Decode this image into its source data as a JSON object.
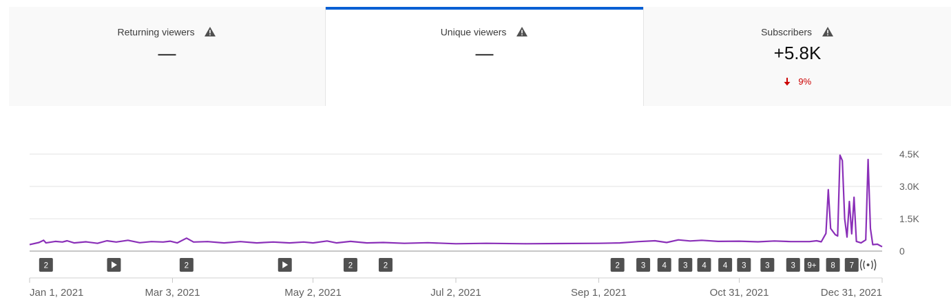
{
  "tabs": [
    {
      "label": "Returning viewers",
      "value": "—",
      "selected": false,
      "icon": "warning-icon"
    },
    {
      "label": "Unique viewers",
      "value": "—",
      "selected": true,
      "icon": "warning-icon"
    },
    {
      "label": "Subscribers",
      "value": "+5.8K",
      "selected": false,
      "icon": "warning-icon",
      "delta": "9%",
      "delta_direction": "down"
    }
  ],
  "colors": {
    "accent": "#065fd4",
    "line": "#8a2fb8",
    "negative": "#cc0000"
  },
  "chart_data": {
    "type": "line",
    "x_start": "Jan 1, 2021",
    "x_end": "Dec 31, 2021",
    "x_tick_labels": [
      "Jan 1, 2021",
      "Mar 3, 2021",
      "May 2, 2021",
      "Jul 2, 2021",
      "Sep 1, 2021",
      "Oct 31, 2021",
      "Dec 31, 2021"
    ],
    "y_ticks": [
      0,
      1500,
      3000,
      4500
    ],
    "y_tick_labels": [
      "0",
      "1.5K",
      "3.0K",
      "4.5K"
    ],
    "ylim": [
      0,
      4500
    ],
    "grid": true,
    "series": [
      {
        "points": [
          [
            "2021-01-01",
            300
          ],
          [
            "2021-01-05",
            400
          ],
          [
            "2021-01-07",
            500
          ],
          [
            "2021-01-08",
            380
          ],
          [
            "2021-01-12",
            450
          ],
          [
            "2021-01-15",
            420
          ],
          [
            "2021-01-17",
            480
          ],
          [
            "2021-01-20",
            380
          ],
          [
            "2021-01-25",
            430
          ],
          [
            "2021-01-30",
            360
          ],
          [
            "2021-02-03",
            480
          ],
          [
            "2021-02-07",
            420
          ],
          [
            "2021-02-12",
            500
          ],
          [
            "2021-02-17",
            390
          ],
          [
            "2021-02-22",
            440
          ],
          [
            "2021-02-27",
            420
          ],
          [
            "2021-03-02",
            460
          ],
          [
            "2021-03-05",
            380
          ],
          [
            "2021-03-09",
            600
          ],
          [
            "2021-03-12",
            420
          ],
          [
            "2021-03-18",
            440
          ],
          [
            "2021-03-25",
            380
          ],
          [
            "2021-04-01",
            440
          ],
          [
            "2021-04-08",
            380
          ],
          [
            "2021-04-15",
            420
          ],
          [
            "2021-04-22",
            380
          ],
          [
            "2021-04-28",
            420
          ],
          [
            "2021-05-02",
            380
          ],
          [
            "2021-05-08",
            470
          ],
          [
            "2021-05-12",
            380
          ],
          [
            "2021-05-18",
            450
          ],
          [
            "2021-05-25",
            380
          ],
          [
            "2021-06-01",
            400
          ],
          [
            "2021-06-10",
            360
          ],
          [
            "2021-06-20",
            390
          ],
          [
            "2021-07-02",
            340
          ],
          [
            "2021-07-15",
            360
          ],
          [
            "2021-08-01",
            340
          ],
          [
            "2021-08-15",
            350
          ],
          [
            "2021-09-01",
            360
          ],
          [
            "2021-09-10",
            380
          ],
          [
            "2021-09-18",
            440
          ],
          [
            "2021-09-25",
            480
          ],
          [
            "2021-09-30",
            400
          ],
          [
            "2021-10-05",
            520
          ],
          [
            "2021-10-10",
            470
          ],
          [
            "2021-10-15",
            500
          ],
          [
            "2021-10-22",
            450
          ],
          [
            "2021-10-31",
            460
          ],
          [
            "2021-11-08",
            430
          ],
          [
            "2021-11-15",
            470
          ],
          [
            "2021-11-22",
            440
          ],
          [
            "2021-11-30",
            440
          ],
          [
            "2021-12-03",
            480
          ],
          [
            "2021-12-05",
            430
          ],
          [
            "2021-12-07",
            820
          ],
          [
            "2021-12-08",
            2850
          ],
          [
            "2021-12-09",
            1050
          ],
          [
            "2021-12-11",
            760
          ],
          [
            "2021-12-12",
            700
          ],
          [
            "2021-12-13",
            4450
          ],
          [
            "2021-12-14",
            4200
          ],
          [
            "2021-12-15",
            1500
          ],
          [
            "2021-12-16",
            650
          ],
          [
            "2021-12-17",
            2300
          ],
          [
            "2021-12-18",
            800
          ],
          [
            "2021-12-19",
            2500
          ],
          [
            "2021-12-20",
            450
          ],
          [
            "2021-12-22",
            380
          ],
          [
            "2021-12-24",
            520
          ],
          [
            "2021-12-25",
            4250
          ],
          [
            "2021-12-26",
            1050
          ],
          [
            "2021-12-27",
            300
          ],
          [
            "2021-12-29",
            320
          ],
          [
            "2021-12-31",
            200
          ]
        ]
      }
    ],
    "markers": [
      {
        "date": "2021-01-08",
        "kind": "count",
        "label": "2"
      },
      {
        "date": "2021-02-06",
        "kind": "video",
        "label": ""
      },
      {
        "date": "2021-03-09",
        "kind": "count",
        "label": "2"
      },
      {
        "date": "2021-04-20",
        "kind": "video",
        "label": ""
      },
      {
        "date": "2021-05-18",
        "kind": "count",
        "label": "2"
      },
      {
        "date": "2021-06-02",
        "kind": "count",
        "label": "2"
      },
      {
        "date": "2021-09-09",
        "kind": "count",
        "label": "2"
      },
      {
        "date": "2021-09-20",
        "kind": "count",
        "label": "3"
      },
      {
        "date": "2021-09-29",
        "kind": "count",
        "label": "4"
      },
      {
        "date": "2021-10-08",
        "kind": "count",
        "label": "3"
      },
      {
        "date": "2021-10-16",
        "kind": "count",
        "label": "4"
      },
      {
        "date": "2021-10-25",
        "kind": "count",
        "label": "4"
      },
      {
        "date": "2021-11-02",
        "kind": "count",
        "label": "3"
      },
      {
        "date": "2021-11-12",
        "kind": "count",
        "label": "3"
      },
      {
        "date": "2021-11-23",
        "kind": "count",
        "label": "3"
      },
      {
        "date": "2021-12-01",
        "kind": "count",
        "label": "9+"
      },
      {
        "date": "2021-12-10",
        "kind": "count",
        "label": "8"
      },
      {
        "date": "2021-12-18",
        "kind": "count",
        "label": "7"
      },
      {
        "date": "2021-12-25",
        "kind": "live",
        "label": ""
      }
    ]
  }
}
